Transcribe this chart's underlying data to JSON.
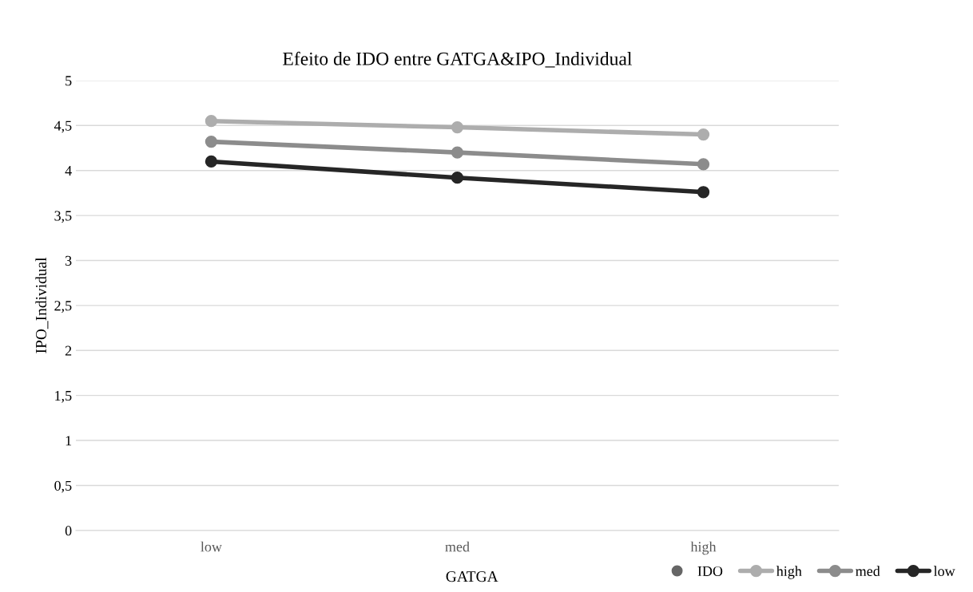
{
  "chart_data": {
    "type": "line",
    "title": "Efeito de IDO entre GATGA&IPO_Individual",
    "xlabel": "GATGA",
    "ylabel": "IPO_Individual",
    "legend_title": "IDO",
    "categories": [
      "low",
      "med",
      "high"
    ],
    "series": [
      {
        "name": "high",
        "color": "#adadad",
        "values": [
          4.55,
          4.48,
          4.4
        ]
      },
      {
        "name": "med",
        "color": "#8c8c8c",
        "values": [
          4.32,
          4.2,
          4.07
        ]
      },
      {
        "name": "low",
        "color": "#262626",
        "values": [
          4.1,
          3.92,
          3.76
        ]
      }
    ],
    "ylim": [
      0,
      5
    ],
    "yticks": [
      0,
      {
        "value": 0.5,
        "label": "0,5"
      },
      1,
      {
        "value": 1.5,
        "label": "1,5"
      },
      2,
      {
        "value": 2.5,
        "label": "2,5"
      },
      3,
      {
        "value": 3.5,
        "label": "3,5"
      },
      4,
      {
        "value": 4.5,
        "label": "4,5"
      },
      5
    ],
    "grid": "y",
    "legend": "bottom right",
    "marker": "circle",
    "line_style": "solid"
  }
}
